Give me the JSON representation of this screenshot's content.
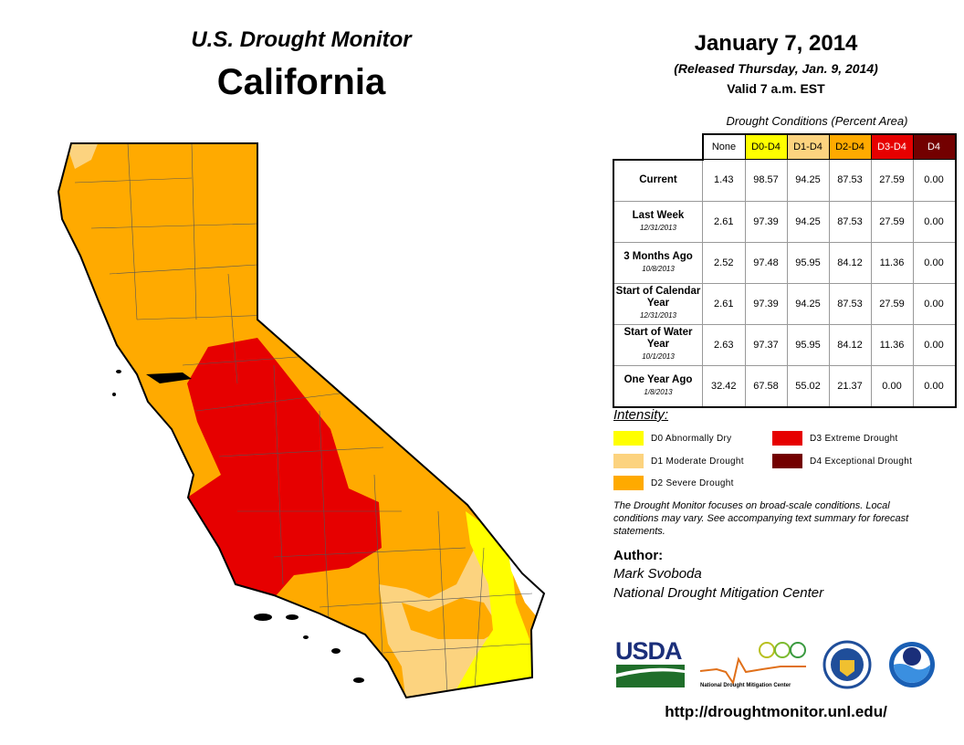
{
  "header": {
    "title": "U.S. Drought Monitor",
    "region": "California",
    "date": "January 7, 2014",
    "released": "(Released Thursday, Jan. 9, 2014)",
    "valid": "Valid 7 a.m. EST"
  },
  "table": {
    "caption": "Drought Conditions (Percent Area)",
    "columns": [
      {
        "label": "None",
        "color": "#ffffff",
        "text": "#000000"
      },
      {
        "label": "D0-D4",
        "color": "#ffff00",
        "text": "#000000"
      },
      {
        "label": "D1-D4",
        "color": "#fcd37f",
        "text": "#000000"
      },
      {
        "label": "D2-D4",
        "color": "#ffaa00",
        "text": "#000000"
      },
      {
        "label": "D3-D4",
        "color": "#e60000",
        "text": "#ffffff"
      },
      {
        "label": "D4",
        "color": "#730000",
        "text": "#ffffff"
      }
    ],
    "rows": [
      {
        "label": "Current",
        "date": "",
        "values": [
          "1.43",
          "98.57",
          "94.25",
          "87.53",
          "27.59",
          "0.00"
        ]
      },
      {
        "label": "Last Week",
        "date": "12/31/2013",
        "values": [
          "2.61",
          "97.39",
          "94.25",
          "87.53",
          "27.59",
          "0.00"
        ]
      },
      {
        "label": "3 Months Ago",
        "date": "10/8/2013",
        "values": [
          "2.52",
          "97.48",
          "95.95",
          "84.12",
          "11.36",
          "0.00"
        ]
      },
      {
        "label": "Start of Calendar Year",
        "date": "12/31/2013",
        "values": [
          "2.61",
          "97.39",
          "94.25",
          "87.53",
          "27.59",
          "0.00"
        ]
      },
      {
        "label": "Start of Water Year",
        "date": "10/1/2013",
        "values": [
          "2.63",
          "97.37",
          "95.95",
          "84.12",
          "11.36",
          "0.00"
        ]
      },
      {
        "label": "One Year Ago",
        "date": "1/8/2013",
        "values": [
          "32.42",
          "67.58",
          "55.02",
          "21.37",
          "0.00",
          "0.00"
        ]
      }
    ]
  },
  "legend": {
    "title": "Intensity:",
    "items": [
      {
        "label": "D0 Abnormally Dry",
        "color": "#ffff00"
      },
      {
        "label": "D1 Moderate Drought",
        "color": "#fcd37f"
      },
      {
        "label": "D2 Severe Drought",
        "color": "#ffaa00"
      },
      {
        "label": "D3 Extreme Drought",
        "color": "#e60000"
      },
      {
        "label": "D4 Exceptional Drought",
        "color": "#730000"
      }
    ]
  },
  "note": "The Drought Monitor focuses on broad-scale conditions. Local conditions may vary. See accompanying text summary for forecast statements.",
  "author": {
    "heading": "Author:",
    "name": "Mark Svoboda",
    "org": "National Drought Mitigation Center"
  },
  "logos": {
    "usda": "USDA",
    "ndmc": "National Drought Mitigation Center",
    "commerce": "U.S. Department of Commerce seal",
    "noaa": "NOAA"
  },
  "url": "http://droughtmonitor.unl.edu/"
}
